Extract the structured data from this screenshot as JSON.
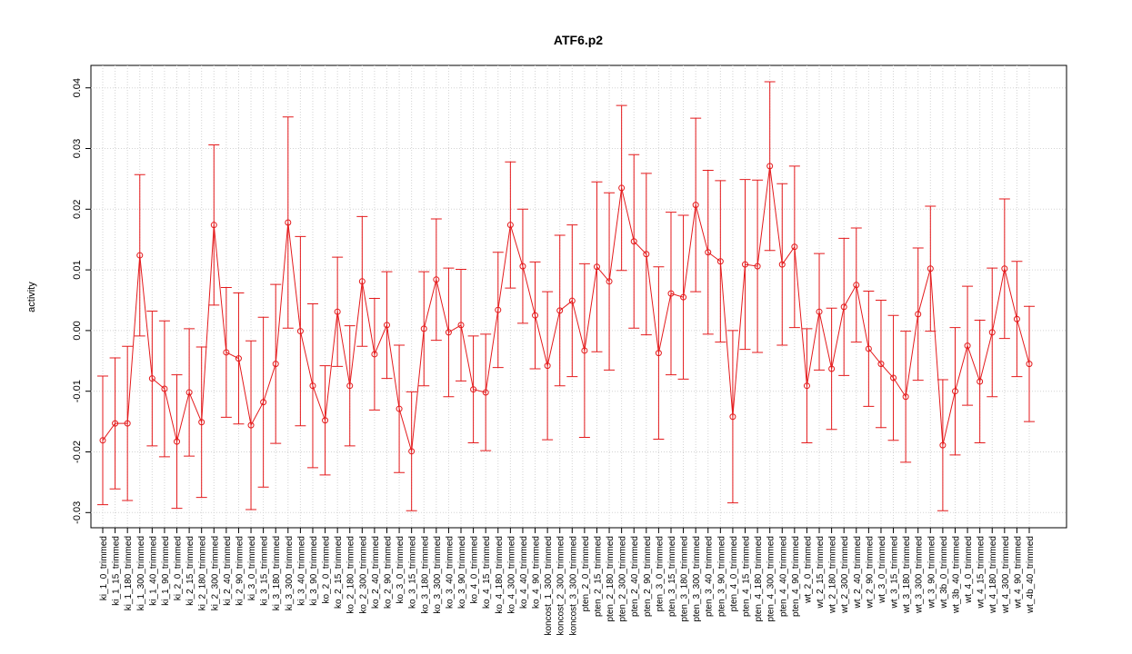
{
  "chart_data": {
    "type": "errorbar-line",
    "title": "ATF6.p2",
    "y_label": "activity",
    "color": "#e41a1c",
    "grid": true,
    "categories": [
      "ki_1_0_trimmed",
      "ki_1_15_trimmed",
      "ki_1_180_trimmed",
      "ki_1_300_trimmed",
      "ki_1_40_trimmed",
      "ki_1_90_trimmed",
      "ki_2_0_trimmed",
      "ki_2_15_trimmed",
      "ki_2_180_trimmed",
      "ki_2_300_trimmed",
      "ki_2_40_trimmed",
      "ki_2_90_trimmed",
      "ki_3_0_trimmed",
      "ki_3_15_trimmed",
      "ki_3_180_trimmed",
      "ki_3_300_trimmed",
      "ki_3_40_trimmed",
      "ki_3_90_trimmed",
      "ko_2_0_trimmed",
      "ko_2_15_trimmed",
      "ko_2_180_trimmed",
      "ko_2_300_trimmed",
      "ko_2_40_trimmed",
      "ko_2_90_trimmed",
      "ko_3_0_trimmed",
      "ko_3_15_trimmed",
      "ko_3_180_trimmed",
      "ko_3_300_trimmed",
      "ko_3_40_trimmed",
      "ko_3_90_trimmed",
      "ko_4_0_trimmed",
      "ko_4_15_trimmed",
      "ko_4_180_trimmed",
      "ko_4_300_trimmed",
      "ko_4_40_trimmed",
      "ko_4_90_trimmed",
      "koncost_1_300_trimmed",
      "koncost_2_300_trimmed",
      "koncost_3_300_trimmed",
      "pten_2_0_trimmed",
      "pten_2_15_trimmed",
      "pten_2_180_trimmed",
      "pten_2_300_trimmed",
      "pten_2_40_trimmed",
      "pten_2_90_trimmed",
      "pten_3_0_trimmed",
      "pten_3_15_trimmed",
      "pten_3_180_trimmed",
      "pten_3_300_trimmed",
      "pten_3_40_trimmed",
      "pten_3_90_trimmed",
      "pten_4_0_trimmed",
      "pten_4_15_trimmed",
      "pten_4_180_trimmed",
      "pten_4_300_trimmed",
      "pten_4_40_trimmed",
      "pten_4_90_trimmed",
      "wt_2_0_trimmed",
      "wt_2_15_trimmed",
      "wt_2_180_trimmed",
      "wt_2_300_trimmed",
      "wt_2_40_trimmed",
      "wt_2_90_trimmed",
      "wt_3_0_trimmed",
      "wt_3_15_trimmed",
      "wt_3_180_trimmed",
      "wt_3_300_trimmed",
      "wt_3_90_trimmed",
      "wt_3b_0_trimmed",
      "wt_3b_40_trimmed",
      "wt_4_0_trimmed",
      "wt_4_15_trimmed",
      "wt_4_180_trimmed",
      "wt_4_300_trimmed",
      "wt_4_90_trimmed",
      "wt_4b_40_trimmed"
    ],
    "values": [
      -0.0181,
      -0.0153,
      -0.0153,
      0.0124,
      -0.0079,
      -0.0096,
      -0.0183,
      -0.0102,
      -0.0151,
      0.0174,
      -0.0036,
      -0.0046,
      -0.0156,
      -0.0118,
      -0.0055,
      0.0178,
      -0.0001,
      -0.0091,
      -0.0148,
      0.0031,
      -0.0091,
      0.0081,
      -0.0039,
      0.0009,
      -0.0129,
      -0.0199,
      0.0003,
      0.0084,
      -0.0003,
      0.0009,
      -0.0097,
      -0.0102,
      0.0034,
      0.0174,
      0.0106,
      0.0025,
      -0.0058,
      0.0033,
      0.0049,
      -0.0033,
      0.0105,
      0.0081,
      0.0235,
      0.0147,
      0.0126,
      -0.0037,
      0.0061,
      0.0055,
      0.0207,
      0.0129,
      0.0114,
      -0.0142,
      0.0109,
      0.0106,
      0.0271,
      0.0109,
      0.0138,
      -0.0091,
      0.0031,
      -0.0063,
      0.0039,
      0.0075,
      -0.003,
      -0.0055,
      -0.0078,
      -0.0109,
      0.0027,
      0.0102,
      -0.0189,
      -0.01,
      -0.0025,
      -0.0084,
      -0.0003,
      0.0102,
      0.0019,
      -0.0055
    ],
    "errors": [
      0.0106,
      0.0108,
      0.0127,
      0.0133,
      0.0111,
      0.0112,
      0.011,
      0.0105,
      0.0124,
      0.0132,
      0.0107,
      0.0108,
      0.0139,
      0.014,
      0.0131,
      0.0174,
      0.0156,
      0.0135,
      0.009,
      0.009,
      0.0099,
      0.0107,
      0.0092,
      0.0088,
      0.0105,
      0.0098,
      0.0094,
      0.01,
      0.0106,
      0.0092,
      0.0088,
      0.0096,
      0.0095,
      0.0104,
      0.0094,
      0.0088,
      0.0122,
      0.0124,
      0.0125,
      0.0143,
      0.014,
      0.0146,
      0.0136,
      0.0143,
      0.0133,
      0.0142,
      0.0134,
      0.0135,
      0.0143,
      0.0135,
      0.0133,
      0.0142,
      0.014,
      0.0142,
      0.0139,
      0.0133,
      0.0133,
      0.0094,
      0.0096,
      0.01,
      0.0113,
      0.0094,
      0.0095,
      0.0105,
      0.0103,
      0.0108,
      0.0109,
      0.0103,
      0.0108,
      0.0105,
      0.0098,
      0.0101,
      0.0106,
      0.0115,
      0.0095,
      0.0095
    ],
    "ylim": [
      -0.0325,
      0.0437
    ],
    "yticks": [
      -0.03,
      -0.02,
      -0.01,
      {
        "value": 0,
        "label": "0.00"
      },
      0.01,
      0.02,
      0.03,
      0.04
    ]
  }
}
